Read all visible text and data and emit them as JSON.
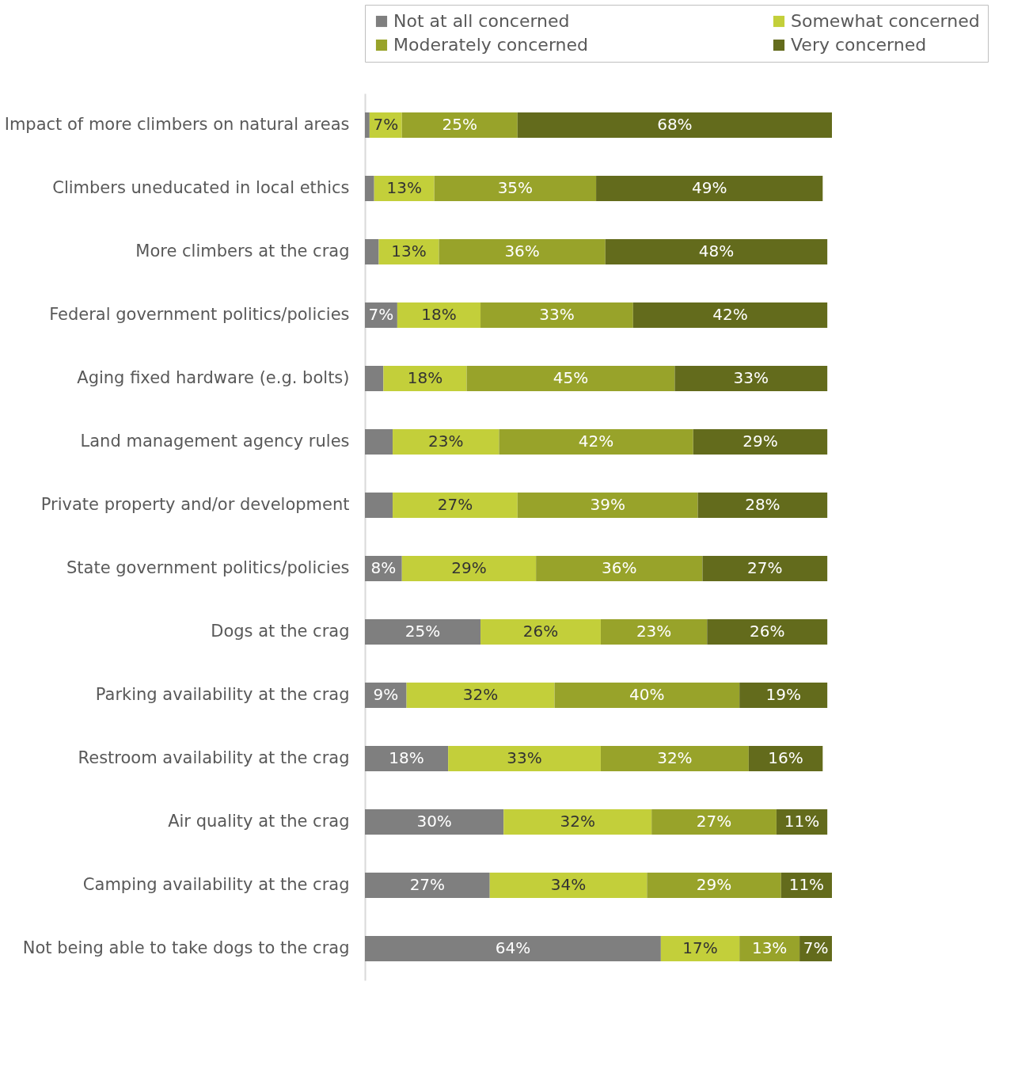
{
  "chart_data": {
    "type": "bar",
    "orientation": "horizontal",
    "stacked": true,
    "legend": "top",
    "categories": [
      "Impact of more climbers on natural areas",
      "Climbers uneducated in local ethics",
      "More climbers at the crag",
      "Federal government politics/policies",
      "Aging fixed hardware (e.g. bolts)",
      "Land management agency rules",
      "Private property and/or development",
      "State government politics/policies",
      "Dogs at the crag",
      "Parking availability at the crag",
      "Restroom availability at the crag",
      "Air quality at the crag",
      "Camping availability at the crag",
      "Not being able to take dogs to the crag"
    ],
    "series": [
      {
        "name": "Not at all concerned",
        "color": "#7f7f7f",
        "values": [
          1,
          2,
          3,
          7,
          4,
          6,
          6,
          8,
          25,
          9,
          18,
          30,
          27,
          64
        ],
        "value_labels": [
          null,
          null,
          null,
          "7%",
          null,
          null,
          null,
          "8%",
          "25%",
          "9%",
          "18%",
          "30%",
          "27%",
          "64%"
        ]
      },
      {
        "name": "Somewhat concerned",
        "color": "#c3cf3a",
        "values": [
          7,
          13,
          13,
          18,
          18,
          23,
          27,
          29,
          26,
          32,
          33,
          32,
          34,
          17
        ],
        "value_labels": [
          "7%",
          "13%",
          "13%",
          "18%",
          "18%",
          "23%",
          "27%",
          "29%",
          "26%",
          "32%",
          "33%",
          "32%",
          "34%",
          "17%"
        ]
      },
      {
        "name": "Moderately concerned",
        "color": "#98a32a",
        "values": [
          25,
          35,
          36,
          33,
          45,
          42,
          39,
          36,
          23,
          40,
          32,
          27,
          29,
          13
        ],
        "value_labels": [
          "25%",
          "35%",
          "36%",
          "33%",
          "45%",
          "42%",
          "39%",
          "36%",
          "23%",
          "40%",
          "32%",
          "27%",
          "29%",
          "13%"
        ]
      },
      {
        "name": "Very concerned",
        "color": "#636b1c",
        "values": [
          68,
          49,
          48,
          42,
          33,
          29,
          28,
          27,
          26,
          19,
          16,
          11,
          11,
          7
        ],
        "value_labels": [
          "68%",
          "49%",
          "48%",
          "42%",
          "33%",
          "29%",
          "28%",
          "27%",
          "26%",
          "19%",
          "16%",
          "11%",
          "11%",
          "7%"
        ]
      }
    ]
  }
}
